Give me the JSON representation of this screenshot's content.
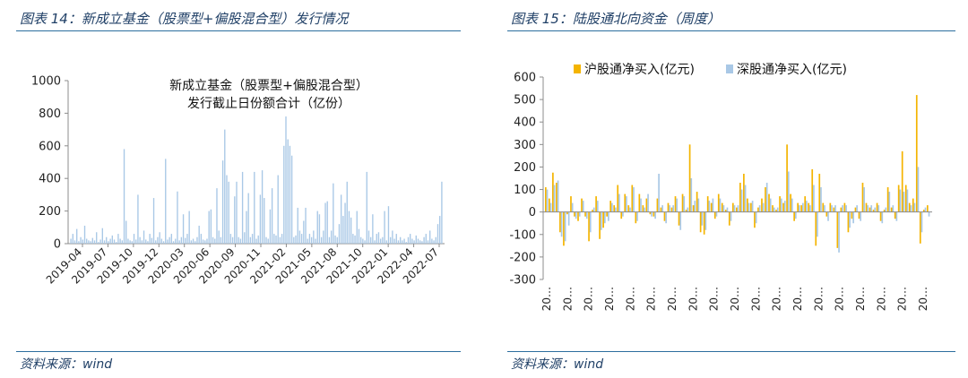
{
  "left_panel": {
    "caption": "图表 14：新成立基金（股票型+偏股混合型）发行情况",
    "source": "资料来源：wind"
  },
  "right_panel": {
    "caption": "图表 15：陆股通北向资金（周度）",
    "source": "资料来源：wind"
  },
  "colors": {
    "left_bar": "#a9c8e6",
    "sh": "#f4b400",
    "sz": "#a9c8e6",
    "rule": "#2c6e9e",
    "axis": "#8c8c8c"
  },
  "chart_data": [
    {
      "type": "bar",
      "title": [
        "新成立基金（股票型+偏股混合型）",
        "发行截止日份额合计（亿份）"
      ],
      "ylim": [
        0,
        1000
      ],
      "yticks": [
        0,
        200,
        400,
        600,
        800,
        1000
      ],
      "xticklabels": [
        "2019-04",
        "2019-07",
        "2019-10",
        "2019-12",
        "2020-03",
        "2020-06",
        "2020-09",
        "2020-11",
        "2021-02",
        "2021-05",
        "2021-08",
        "2021-10",
        "2022-01",
        "2022-04",
        "2022-07"
      ],
      "series": [
        {
          "values": [
            30,
            60,
            20,
            90,
            15,
            40,
            25,
            110,
            30,
            20,
            15,
            35,
            20,
            70,
            10,
            25,
            95,
            20,
            40,
            15,
            30,
            50,
            25,
            10,
            60,
            30,
            20,
            580,
            140,
            30,
            20,
            15,
            60,
            25,
            300,
            40,
            20,
            80,
            25,
            15,
            60,
            35,
            280,
            20,
            40,
            70,
            30,
            15,
            520,
            25,
            40,
            60,
            15,
            30,
            320,
            20,
            40,
            180,
            35,
            60,
            200,
            20,
            30,
            15,
            40,
            110,
            60,
            25,
            20,
            30,
            200,
            210,
            40,
            30,
            340,
            80,
            40,
            510,
            700,
            420,
            380,
            60,
            40,
            290,
            380,
            40,
            30,
            440,
            70,
            200,
            310,
            40,
            60,
            440,
            30,
            50,
            300,
            450,
            280,
            40,
            30,
            210,
            340,
            60,
            50,
            420,
            40,
            60,
            600,
            780,
            640,
            600,
            540,
            40,
            50,
            220,
            80,
            60,
            140,
            220,
            30,
            60,
            40,
            80,
            30,
            200,
            180,
            40,
            80,
            250,
            260,
            40,
            80,
            370,
            50,
            40,
            120,
            300,
            170,
            250,
            380,
            200,
            160,
            60,
            50,
            200,
            90,
            40,
            30,
            20,
            440,
            80,
            40,
            180,
            20,
            60,
            70,
            30,
            40,
            200,
            20,
            230,
            40,
            80,
            30,
            60,
            20,
            40,
            20,
            30,
            10,
            40,
            60,
            30,
            20,
            50,
            30,
            20,
            15,
            40,
            60,
            20,
            80,
            30,
            20,
            40,
            120,
            170,
            380
          ]
        }
      ]
    },
    {
      "type": "bar",
      "ylim": [
        -300,
        600
      ],
      "yticks": [
        -300,
        -200,
        -100,
        0,
        100,
        200,
        300,
        400,
        500,
        600
      ],
      "xticklabel": "20…",
      "legend": "top-right",
      "series": [
        {
          "name": "沪股通净买入(亿元)",
          "values": [
            110,
            60,
            175,
            130,
            -90,
            -150,
            -10,
            70,
            -20,
            -40,
            60,
            -20,
            -130,
            10,
            70,
            -120,
            -70,
            -20,
            50,
            30,
            120,
            -30,
            80,
            30,
            120,
            -50,
            80,
            30,
            60,
            -10,
            -20,
            60,
            20,
            -40,
            40,
            20,
            70,
            -60,
            80,
            10,
            300,
            30,
            90,
            -90,
            -100,
            70,
            40,
            -30,
            80,
            40,
            10,
            -60,
            40,
            20,
            130,
            170,
            60,
            40,
            -70,
            20,
            60,
            110,
            80,
            30,
            10,
            70,
            40,
            300,
            80,
            -40,
            40,
            30,
            70,
            40,
            190,
            -150,
            170,
            40,
            -20,
            40,
            20,
            -160,
            20,
            40,
            -90,
            -30,
            20,
            -30,
            130,
            40,
            20,
            10,
            40,
            -40,
            10,
            110,
            20,
            -30,
            120,
            270,
            120,
            40,
            60,
            520,
            -140,
            10,
            30
          ]
        },
        {
          "name": "深股通净买入(亿元)",
          "values": [
            100,
            40,
            120,
            140,
            -110,
            -130,
            -60,
            40,
            -30,
            -20,
            50,
            -30,
            -90,
            20,
            50,
            -80,
            -50,
            -40,
            40,
            20,
            80,
            -20,
            70,
            20,
            110,
            -40,
            60,
            20,
            80,
            -20,
            -30,
            170,
            30,
            -50,
            30,
            30,
            60,
            -80,
            70,
            20,
            150,
            50,
            60,
            -60,
            -80,
            50,
            60,
            -20,
            60,
            30,
            20,
            -40,
            30,
            30,
            100,
            120,
            40,
            50,
            -50,
            30,
            40,
            130,
            60,
            20,
            20,
            60,
            50,
            180,
            60,
            -30,
            30,
            40,
            50,
            30,
            120,
            -110,
            110,
            30,
            -40,
            30,
            30,
            -180,
            30,
            30,
            -70,
            -50,
            30,
            -40,
            110,
            30,
            30,
            20,
            30,
            -50,
            20,
            90,
            30,
            -40,
            100,
            90,
            100,
            30,
            40,
            200,
            -90,
            20,
            -20
          ]
        }
      ]
    }
  ]
}
